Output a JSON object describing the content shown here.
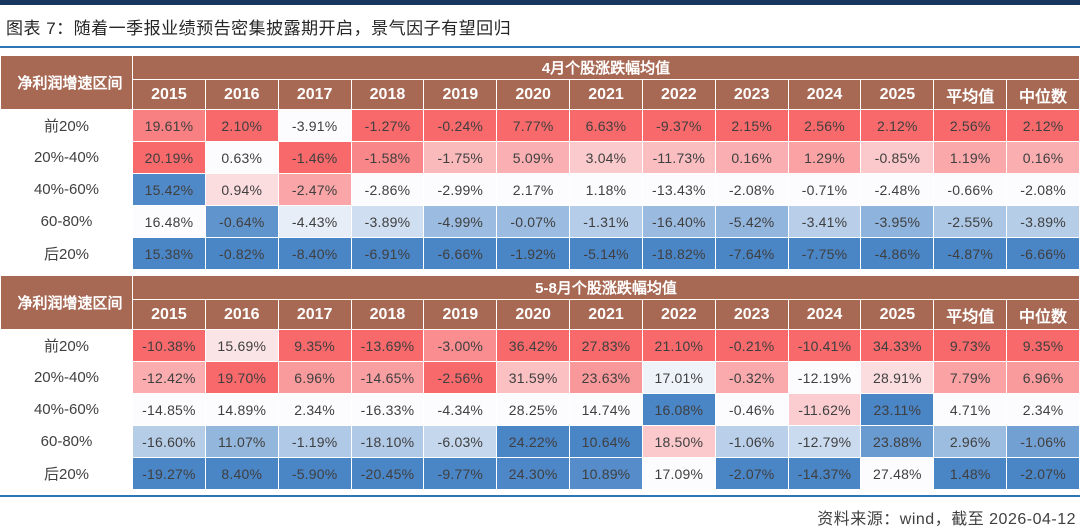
{
  "figure": {
    "title": "图表 7：随着一季报业绩预告密集披露期开启，景气因子有望回归",
    "source_note": "资料来源：wind，截至 2026-04-12"
  },
  "colors": {
    "top_bar": "#17375e",
    "rule_blue": "#2e75b6",
    "header_bg": "#a86954",
    "header_text": "#ffffff",
    "cell_text": "#3f3f3f",
    "scale_high_red": "#f8696b",
    "scale_mid_white": "#fcfcff",
    "scale_low_blue": "#4a85c6",
    "table_border": "#595959"
  },
  "chart_data": [
    {
      "type": "heatmap",
      "title": "4月个股涨跌幅均值",
      "row_dimension_label": "净利润增速区间",
      "columns": [
        "2015",
        "2016",
        "2017",
        "2018",
        "2019",
        "2020",
        "2021",
        "2022",
        "2023",
        "2024",
        "2025",
        "平均值",
        "中位数"
      ],
      "value_format": "percent_2dp",
      "color_scale": "per_column_red_white_blue",
      "rows": [
        {
          "label": "前20%",
          "values": [
            19.61,
            2.1,
            -3.91,
            -1.27,
            -0.24,
            7.77,
            6.63,
            -9.37,
            2.15,
            2.56,
            2.12,
            2.56,
            2.12
          ]
        },
        {
          "label": "20%-40%",
          "values": [
            20.19,
            0.63,
            -1.46,
            -1.58,
            -1.75,
            5.09,
            3.04,
            -11.73,
            0.16,
            1.29,
            -0.85,
            1.19,
            0.16
          ]
        },
        {
          "label": "40%-60%",
          "values": [
            15.42,
            0.94,
            -2.47,
            -2.86,
            -2.99,
            2.17,
            1.18,
            -13.43,
            -2.08,
            -0.71,
            -2.48,
            -0.66,
            -2.08
          ]
        },
        {
          "label": "60-80%",
          "values": [
            16.48,
            -0.64,
            -4.43,
            -3.89,
            -4.99,
            -0.07,
            -1.31,
            -16.4,
            -5.42,
            -3.41,
            -3.95,
            -2.55,
            -3.89
          ]
        },
        {
          "label": "后20%",
          "values": [
            15.38,
            -0.82,
            -8.4,
            -6.91,
            -6.66,
            -1.92,
            -5.14,
            -18.82,
            -7.64,
            -7.75,
            -4.86,
            -4.87,
            -6.66
          ]
        }
      ]
    },
    {
      "type": "heatmap",
      "title": "5-8月个股涨跌幅均值",
      "row_dimension_label": "净利润增速区间",
      "columns": [
        "2015",
        "2016",
        "2017",
        "2018",
        "2019",
        "2020",
        "2021",
        "2022",
        "2023",
        "2024",
        "2025",
        "平均值",
        "中位数"
      ],
      "value_format": "percent_2dp",
      "color_scale": "per_column_red_white_blue",
      "rows": [
        {
          "label": "前20%",
          "values": [
            -10.38,
            15.69,
            9.35,
            -13.69,
            -3.0,
            36.42,
            27.83,
            21.1,
            -0.21,
            -10.41,
            34.33,
            9.73,
            9.35
          ]
        },
        {
          "label": "20%-40%",
          "values": [
            -12.42,
            19.7,
            6.96,
            -14.65,
            -2.56,
            31.59,
            23.63,
            17.01,
            -0.32,
            -12.19,
            28.91,
            7.79,
            6.96
          ]
        },
        {
          "label": "40%-60%",
          "values": [
            -14.85,
            14.89,
            2.34,
            -16.33,
            -4.34,
            28.25,
            14.74,
            16.08,
            -0.46,
            -11.62,
            23.11,
            4.71,
            2.34
          ]
        },
        {
          "label": "60-80%",
          "values": [
            -16.6,
            11.07,
            -1.19,
            -18.1,
            -6.03,
            24.22,
            10.64,
            18.5,
            -1.06,
            -12.79,
            23.88,
            2.96,
            -1.06
          ]
        },
        {
          "label": "后20%",
          "values": [
            -19.27,
            8.4,
            -5.9,
            -20.45,
            -9.77,
            24.3,
            10.89,
            17.09,
            -2.07,
            -14.37,
            27.48,
            1.48,
            -2.07
          ]
        }
      ]
    }
  ]
}
